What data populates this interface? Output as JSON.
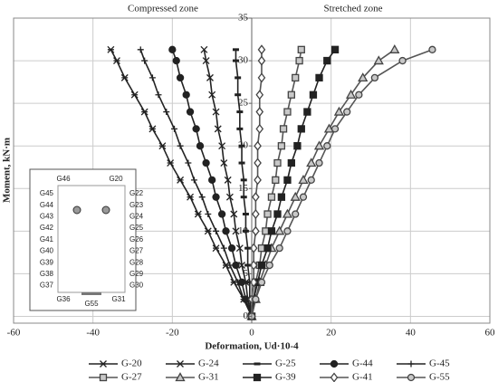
{
  "chart_data": {
    "type": "line",
    "xlabel": "Deformation, Ud·10-4",
    "ylabel": "Moment, kN·m",
    "annotations": [
      "Compressed zone",
      "Stretched zone"
    ],
    "xlim": [
      -60,
      60
    ],
    "xticks": [
      -60,
      -40,
      -20,
      0,
      20,
      40,
      60
    ],
    "ylim": [
      -0.8,
      35
    ],
    "yticks": [
      0,
      5,
      10,
      15,
      20,
      25,
      30,
      35
    ],
    "grid": true,
    "series": [
      {
        "name": "G-20",
        "color": "#222222",
        "marker": "asterisk",
        "x": [
          0,
          -2,
          -4.5,
          -6.5,
          -9,
          -11,
          -13.5,
          -15.5,
          -18,
          -20.5,
          -22.5,
          -25,
          -27,
          -29.5,
          -32,
          -34,
          -35.5
        ],
        "values": [
          0,
          2,
          4,
          6,
          8,
          10,
          12,
          14,
          16,
          18,
          20,
          22,
          24,
          26,
          28,
          30,
          31.3
        ]
      },
      {
        "name": "G-24",
        "color": "#222222",
        "marker": "x",
        "x": [
          0,
          -1,
          -1.5,
          -2.5,
          -3,
          -4,
          -4.5,
          -5.5,
          -6,
          -7,
          -7.5,
          -8.5,
          -9,
          -10,
          -10.5,
          -11.5,
          -12
        ],
        "values": [
          0,
          2,
          4,
          6,
          8,
          10,
          12,
          14,
          16,
          18,
          20,
          22,
          24,
          26,
          28,
          30,
          31.3
        ]
      },
      {
        "name": "G-25",
        "color": "#222222",
        "marker": "dash",
        "x": [
          0,
          -0.5,
          -0.5,
          -1,
          -1,
          -1.5,
          -1.5,
          -2,
          -2,
          -2.5,
          -2.5,
          -3,
          -3,
          -3.5,
          -3.5,
          -4,
          -4
        ],
        "values": [
          0,
          2,
          4,
          6,
          8,
          10,
          12,
          14,
          16,
          18,
          20,
          22,
          24,
          26,
          28,
          30,
          31.3
        ]
      },
      {
        "name": "G-44",
        "color": "#222222",
        "marker": "circle",
        "x": [
          0,
          -1.5,
          -2.5,
          -4,
          -5,
          -6.5,
          -7.5,
          -9,
          -10,
          -11.5,
          -13,
          -14,
          -15.5,
          -16.5,
          -18,
          -19,
          -20
        ],
        "values": [
          0,
          2,
          4,
          6,
          8,
          10,
          12,
          14,
          16,
          18,
          20,
          22,
          24,
          26,
          28,
          30,
          31.3
        ]
      },
      {
        "name": "G-45",
        "color": "#222222",
        "marker": "plus",
        "x": [
          0,
          -2,
          -3.5,
          -5.5,
          -7,
          -9,
          -11,
          -12.5,
          -14.5,
          -16,
          -18,
          -19.5,
          -21.5,
          -23.5,
          -25,
          -27,
          -28
        ],
        "values": [
          0,
          2,
          4,
          6,
          8,
          10,
          12,
          14,
          16,
          18,
          20,
          22,
          24,
          26,
          28,
          30,
          31.3
        ]
      },
      {
        "name": "G-27",
        "color": "#888888",
        "marker": "square",
        "x": [
          0,
          0.5,
          1,
          2,
          2.5,
          3.5,
          4,
          5,
          6,
          6.5,
          7.5,
          8,
          9,
          10,
          11,
          12,
          12.5
        ],
        "values": [
          0,
          2,
          4,
          6,
          8,
          10,
          12,
          14,
          16,
          18,
          20,
          22,
          24,
          26,
          28,
          30,
          31.3
        ]
      },
      {
        "name": "G-31",
        "color": "#888888",
        "marker": "triangle",
        "x": [
          0,
          1,
          2,
          3.5,
          5,
          7,
          9,
          11,
          13,
          15,
          17,
          19.5,
          22,
          25,
          28,
          32,
          36
        ],
        "values": [
          0,
          2,
          4,
          6,
          8,
          10,
          12,
          14,
          16,
          18,
          20,
          22,
          24,
          26,
          28,
          30,
          31.3
        ]
      },
      {
        "name": "G-39",
        "color": "#222222",
        "marker": "square-cross",
        "x": [
          0,
          0.5,
          1.5,
          2.5,
          4,
          5,
          6.5,
          7.5,
          9,
          10,
          11.5,
          12.5,
          14,
          15.5,
          17,
          19,
          21
        ],
        "values": [
          0,
          2,
          4,
          6,
          8,
          10,
          12,
          14,
          16,
          18,
          20,
          22,
          24,
          26,
          28,
          30,
          31.3
        ]
      },
      {
        "name": "G-41",
        "color": "#888888",
        "marker": "diamond",
        "x": [
          0,
          0,
          0.5,
          0.5,
          0.5,
          1,
          1,
          1,
          1.5,
          1.5,
          1.5,
          2,
          2,
          2,
          2.5,
          2.5,
          2.5
        ],
        "values": [
          0,
          2,
          4,
          6,
          8,
          10,
          12,
          14,
          16,
          18,
          20,
          22,
          24,
          26,
          28,
          30,
          31.3
        ]
      },
      {
        "name": "G-55",
        "color": "#888888",
        "marker": "circle",
        "x": [
          0,
          1,
          2.5,
          4.5,
          7,
          9,
          11,
          13,
          15,
          17,
          19,
          21,
          24,
          27,
          31,
          38,
          45.5
        ],
        "values": [
          0,
          2,
          4,
          6,
          8,
          10,
          12,
          14,
          16,
          18,
          20,
          22,
          24,
          26,
          28,
          30,
          31.3
        ]
      }
    ]
  },
  "inset": {
    "top": [
      "G46",
      "G20"
    ],
    "left": [
      "G45",
      "G44",
      "G43",
      "G42",
      "G41",
      "G40",
      "G39",
      "G38",
      "G37"
    ],
    "right": [
      "G22",
      "G23",
      "G24",
      "G25",
      "G26",
      "G27",
      "G28",
      "G29",
      "G30"
    ],
    "bottom": [
      "G36",
      "G55",
      "G31"
    ]
  }
}
